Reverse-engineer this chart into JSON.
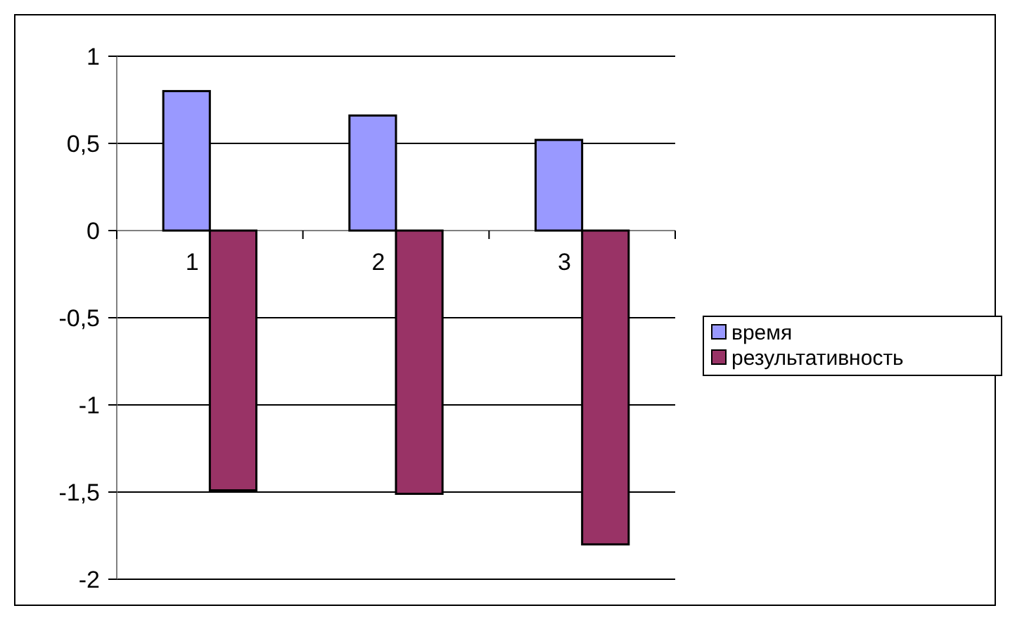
{
  "chart_data": {
    "type": "bar",
    "categories": [
      "1",
      "2",
      "3"
    ],
    "series": [
      {
        "name": "время",
        "color": "#9999ff",
        "values": [
          0.8,
          0.66,
          0.52
        ]
      },
      {
        "name": "результативность",
        "color": "#993366",
        "values": [
          -1.49,
          -1.51,
          -1.8
        ]
      }
    ],
    "ylim": [
      -2,
      1
    ],
    "yticks": [
      {
        "value": -2,
        "label": "-2"
      },
      {
        "value": -1.5,
        "label": "-1,5"
      },
      {
        "value": -1,
        "label": "-1"
      },
      {
        "value": -0.5,
        "label": "-0,5"
      },
      {
        "value": 0,
        "label": "0"
      },
      {
        "value": 0.5,
        "label": "0,5"
      },
      {
        "value": 1,
        "label": "1"
      }
    ],
    "grid": "y",
    "legend": "right"
  }
}
